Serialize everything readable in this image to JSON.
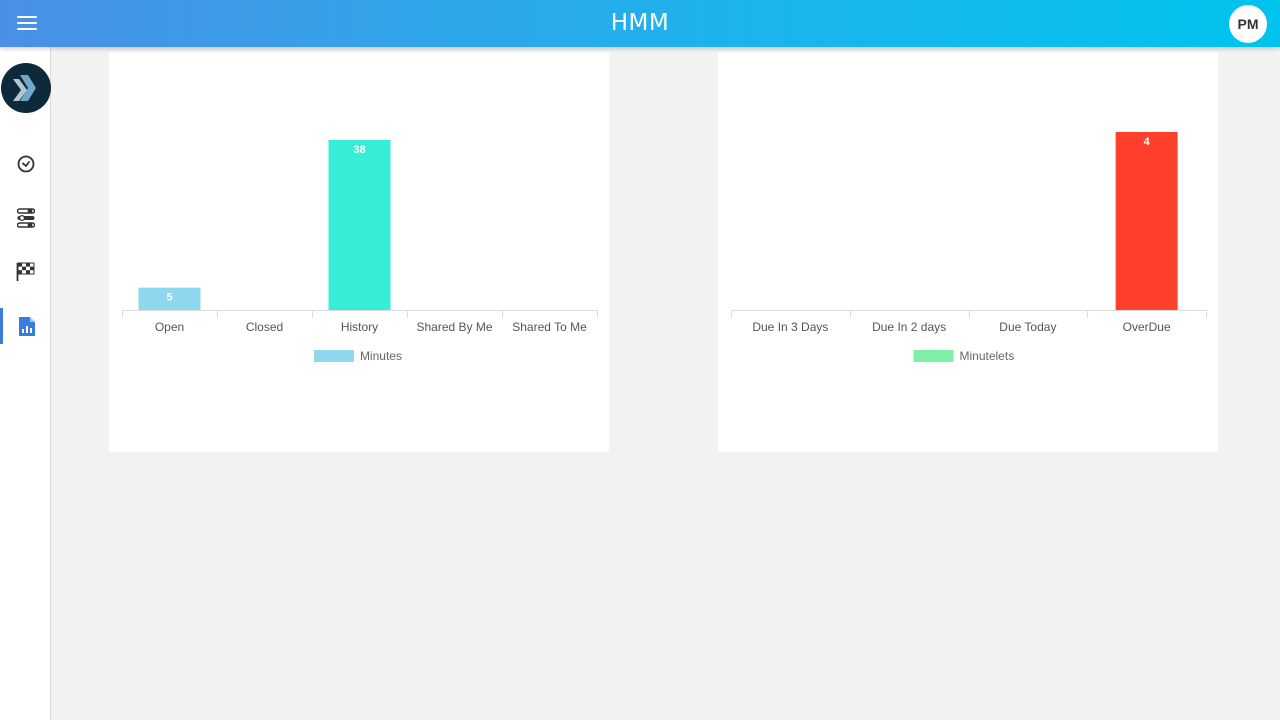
{
  "header": {
    "title": "HMM",
    "avatar_initials": "PM",
    "gradient_colors": [
      "#4a8fe6",
      "#00c3ee"
    ]
  },
  "sidebar": {
    "items": [
      {
        "icon": "clock-icon"
      },
      {
        "icon": "toggles-icon"
      },
      {
        "icon": "checkered-flag-icon"
      },
      {
        "icon": "report-chart-icon",
        "active": true
      }
    ]
  },
  "chart_data": [
    {
      "type": "bar",
      "categories": [
        "Open",
        "Closed",
        "History",
        "Shared By Me",
        "Shared To Me"
      ],
      "series": [
        {
          "name": "Minutes",
          "values": [
            5,
            0,
            38,
            0,
            0
          ]
        }
      ],
      "bar_colors": [
        "#8fd7ee",
        "#8fd7ee",
        "#36eed6",
        "#8fd7ee",
        "#8fd7ee"
      ],
      "legend_color": "#8fd7ee",
      "data_labels": [
        "5",
        "",
        "38",
        "",
        ""
      ],
      "ylim": [
        0,
        38
      ],
      "grid": false,
      "legend_position": "bottom"
    },
    {
      "type": "bar",
      "categories": [
        "Due In 3 Days",
        "Due In 2 days",
        "Due Today",
        "OverDue"
      ],
      "series": [
        {
          "name": "Minutelets",
          "values": [
            0,
            0,
            0,
            4
          ]
        }
      ],
      "bar_colors": [
        "#7df0a5",
        "#7df0a5",
        "#7df0a5",
        "#ff402c"
      ],
      "legend_color": "#7df0a5",
      "data_labels": [
        "",
        "",
        "",
        "4"
      ],
      "ylim": [
        0,
        4
      ],
      "grid": false,
      "legend_position": "bottom"
    }
  ]
}
